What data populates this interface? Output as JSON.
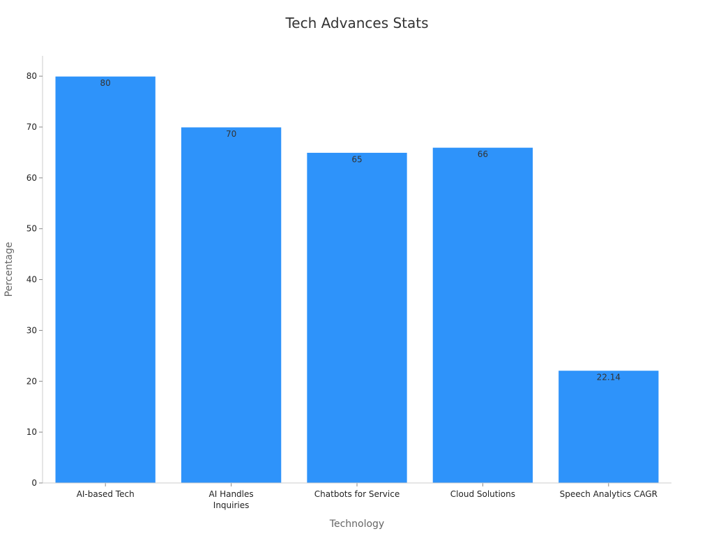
{
  "chart_data": {
    "type": "bar",
    "title": "Tech Advances Stats",
    "xlabel": "Technology",
    "ylabel": "Percentage",
    "categories": [
      [
        "AI-based Tech"
      ],
      [
        "AI Handles",
        "Inquiries"
      ],
      [
        "Chatbots for Service"
      ],
      [
        "Cloud Solutions"
      ],
      [
        "Speech Analytics CAGR"
      ]
    ],
    "values": [
      80,
      70,
      65,
      66,
      22.14
    ],
    "data_labels": [
      "80",
      "70",
      "65",
      "66",
      "22.14"
    ],
    "ylim": [
      0,
      84
    ],
    "yticks": [
      0,
      10,
      20,
      30,
      40,
      50,
      60,
      70,
      80
    ],
    "grid": false,
    "legend": "none",
    "colors": {
      "bar": "#2e93fa",
      "bar_edge": "#ffffff",
      "axis": "#cccccc",
      "title": "#333333",
      "axis_label": "#666666"
    }
  }
}
